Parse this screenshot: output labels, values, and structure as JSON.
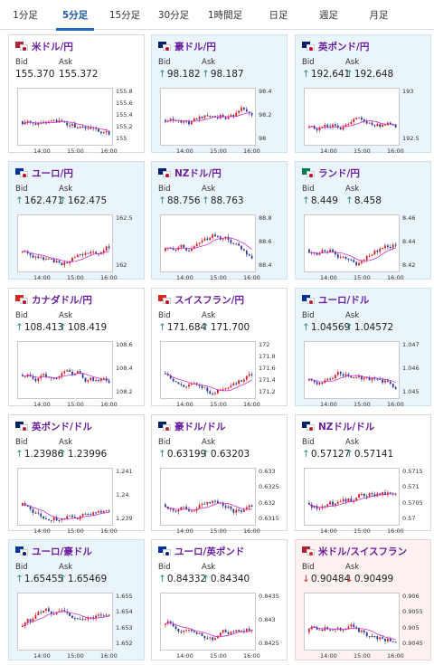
{
  "tabs": [
    {
      "label": "1分足",
      "active": false
    },
    {
      "label": "5分足",
      "active": true
    },
    {
      "label": "15分足",
      "active": false
    },
    {
      "label": "30分足",
      "active": false
    },
    {
      "label": "1時間足",
      "active": false
    },
    {
      "label": "日足",
      "active": false
    },
    {
      "label": "週足",
      "active": false
    },
    {
      "label": "月足",
      "active": false
    }
  ],
  "labels": {
    "bid": "Bid",
    "ask": "Ask"
  },
  "colors": {
    "up": "#d82020",
    "down": "#2a3a9a",
    "ma": "#cc33cc",
    "border": "#d9d9d9",
    "tab_accent": "#1e6ac4",
    "pair_text": "#6b1f9e"
  },
  "pairs": [
    {
      "name": "米ドル/円",
      "bid": "155.370",
      "ask": "155.372",
      "dir": "none",
      "flags": [
        "#b22234",
        "#bc002d"
      ],
      "bg": "white",
      "chart_data": {
        "type": "candlestick",
        "xticks": [
          "14:00",
          "15:00",
          "16:00"
        ],
        "yticks": [
          "155.8",
          "155.6",
          "155.4",
          "155.2",
          "155"
        ],
        "ylim": [
          154.9,
          155.9
        ]
      }
    },
    {
      "name": "豪ドル/円",
      "bid": "98.182",
      "ask": "98.187",
      "dir": "up",
      "flags": [
        "#012169",
        "#bc002d"
      ],
      "bg": "blue",
      "chart_data": {
        "type": "candlestick",
        "xticks": [
          "14:00",
          "15:00",
          "16:00"
        ],
        "yticks": [
          "98.4",
          "98.2",
          "98"
        ],
        "ylim": [
          97.9,
          98.5
        ]
      }
    },
    {
      "name": "英ポンド/円",
      "bid": "192.641",
      "ask": "192.648",
      "dir": "up",
      "flags": [
        "#012169",
        "#bc002d"
      ],
      "bg": "blue",
      "chart_data": {
        "type": "candlestick",
        "xticks": [
          "14:00",
          "15:00",
          "16:00"
        ],
        "yticks": [
          "193",
          "192.5"
        ],
        "ylim": [
          192.2,
          193.2
        ]
      }
    },
    {
      "name": "ユーロ/円",
      "bid": "162.471",
      "ask": "162.475",
      "dir": "up",
      "flags": [
        "#003399",
        "#bc002d"
      ],
      "bg": "blue",
      "chart_data": {
        "type": "candlestick",
        "xticks": [
          "14:00",
          "15:00",
          "16:00"
        ],
        "yticks": [
          "162.5",
          "162"
        ],
        "ylim": [
          161.8,
          162.9
        ]
      }
    },
    {
      "name": "NZドル/円",
      "bid": "88.756",
      "ask": "88.763",
      "dir": "up",
      "flags": [
        "#012169",
        "#bc002d"
      ],
      "bg": "blue",
      "chart_data": {
        "type": "candlestick",
        "xticks": [
          "14:00",
          "15:00",
          "16:00"
        ],
        "yticks": [
          "88.8",
          "88.6",
          "88.4"
        ],
        "ylim": [
          88.3,
          88.9
        ]
      }
    },
    {
      "name": "ランド/円",
      "bid": "8.449",
      "ask": "8.458",
      "dir": "up",
      "flags": [
        "#007a4d",
        "#bc002d"
      ],
      "bg": "blue",
      "chart_data": {
        "type": "candlestick",
        "xticks": [
          "14:00",
          "15:00",
          "16:00"
        ],
        "yticks": [
          "8.46",
          "8.44",
          "8.42"
        ],
        "ylim": [
          8.4,
          8.47
        ]
      }
    },
    {
      "name": "カナダドル/円",
      "bid": "108.413",
      "ask": "108.419",
      "dir": "up",
      "flags": [
        "#d52b1e",
        "#bc002d"
      ],
      "bg": "white",
      "chart_data": {
        "type": "candlestick",
        "xticks": [
          "14:00",
          "15:00",
          "16:00"
        ],
        "yticks": [
          "108.6",
          "108.4",
          "108.2"
        ],
        "ylim": [
          108.0,
          108.7
        ]
      }
    },
    {
      "name": "スイスフラン/円",
      "bid": "171.684",
      "ask": "171.700",
      "dir": "up",
      "flags": [
        "#d52b1e",
        "#bc002d"
      ],
      "bg": "white",
      "chart_data": {
        "type": "candlestick",
        "xticks": [
          "14:00",
          "15:00",
          "16:00"
        ],
        "yticks": [
          "172",
          "171.8",
          "171.6",
          "171.4",
          "171.2"
        ],
        "ylim": [
          171.1,
          172.1
        ]
      }
    },
    {
      "name": "ユーロ/ドル",
      "bid": "1.04569",
      "ask": "1.04572",
      "dir": "up",
      "flags": [
        "#003399",
        "#b22234"
      ],
      "bg": "blue",
      "chart_data": {
        "type": "candlestick",
        "xticks": [
          "14:00",
          "15:00",
          "16:00"
        ],
        "yticks": [
          "1.047",
          "1.046",
          "1.045"
        ],
        "ylim": [
          1.0443,
          1.0473
        ]
      }
    },
    {
      "name": "英ポンド/ドル",
      "bid": "1.23986",
      "ask": "1.23996",
      "dir": "up",
      "flags": [
        "#012169",
        "#b22234"
      ],
      "bg": "white",
      "chart_data": {
        "type": "candlestick",
        "xticks": [
          "14:00",
          "15:00",
          "16:00"
        ],
        "yticks": [
          "1.241",
          "1.24",
          "1.239"
        ],
        "ylim": [
          1.2385,
          1.2415
        ]
      }
    },
    {
      "name": "豪ドル/ドル",
      "bid": "0.63199",
      "ask": "0.63203",
      "dir": "up",
      "flags": [
        "#012169",
        "#b22234"
      ],
      "bg": "white",
      "chart_data": {
        "type": "candlestick",
        "xticks": [
          "14:00",
          "15:00",
          "16:00"
        ],
        "yticks": [
          "0.633",
          "0.6325",
          "0.632",
          "0.6315"
        ],
        "ylim": [
          0.6312,
          0.6333
        ]
      }
    },
    {
      "name": "NZドル/ドル",
      "bid": "0.57127",
      "ask": "0.57141",
      "dir": "up",
      "flags": [
        "#012169",
        "#b22234"
      ],
      "bg": "white",
      "chart_data": {
        "type": "candlestick",
        "xticks": [
          "14:00",
          "15:00",
          "16:00"
        ],
        "yticks": [
          "0.5715",
          "0.571",
          "0.5705",
          "0.57"
        ],
        "ylim": [
          0.5698,
          0.5718
        ]
      }
    },
    {
      "name": "ユーロ/豪ドル",
      "bid": "1.65455",
      "ask": "1.65469",
      "dir": "up",
      "flags": [
        "#003399",
        "#012169"
      ],
      "bg": "blue",
      "chart_data": {
        "type": "candlestick",
        "xticks": [
          "14:00",
          "15:00",
          "16:00"
        ],
        "yticks": [
          "1.655",
          "1.654",
          "1.653",
          "1.652"
        ],
        "ylim": [
          1.6515,
          1.6555
        ]
      }
    },
    {
      "name": "ユーロ/英ポンド",
      "bid": "0.84332",
      "ask": "0.84340",
      "dir": "up",
      "flags": [
        "#003399",
        "#012169"
      ],
      "bg": "white",
      "chart_data": {
        "type": "candlestick",
        "xticks": [
          "14:00",
          "15:00",
          "16:00"
        ],
        "yticks": [
          "0.8435",
          "0.843",
          "0.8425"
        ],
        "ylim": [
          0.8421,
          0.8437
        ]
      }
    },
    {
      "name": "米ドル/スイスフラン",
      "bid": "0.90484",
      "ask": "0.90499",
      "dir": "down",
      "flags": [
        "#b22234",
        "#d52b1e"
      ],
      "bg": "pink",
      "chart_data": {
        "type": "candlestick",
        "xticks": [
          "14:00",
          "15:00",
          "16:00"
        ],
        "yticks": [
          "0.906",
          "0.9055",
          "0.905",
          "0.9045"
        ],
        "ylim": [
          0.9042,
          0.9062
        ]
      }
    }
  ]
}
